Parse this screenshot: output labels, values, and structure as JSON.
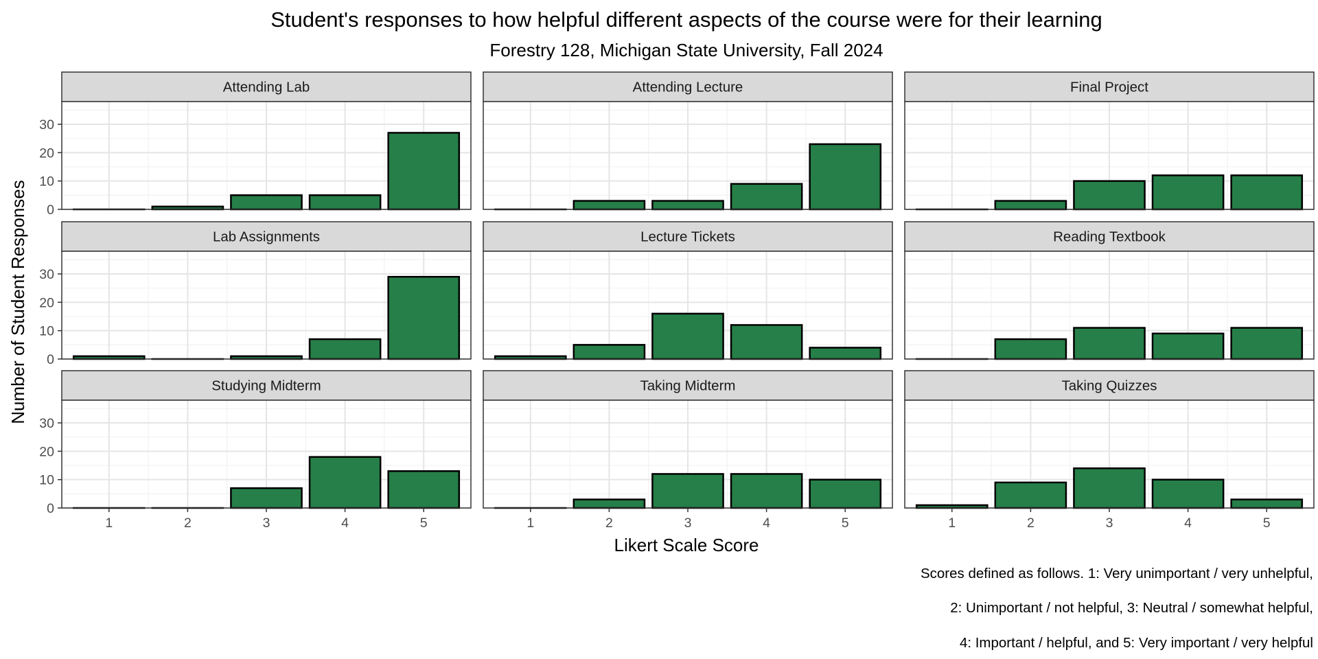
{
  "chart_data": {
    "type": "bar",
    "title": "Student's responses to how helpful different aspects of the course were for their learning",
    "subtitle": "Forestry 128, Michigan State University, Fall 2024",
    "xlabel": "Likert Scale Score",
    "ylabel": "Number of Student Responses",
    "categories": [
      "1",
      "2",
      "3",
      "4",
      "5"
    ],
    "yticks": [
      "0",
      "10",
      "20",
      "30"
    ],
    "ylim": [
      0,
      38
    ],
    "grid": true,
    "bar_color": "#267f48",
    "bar_outline": "#000000",
    "strip_fill": "#d9d9d9",
    "panels": [
      {
        "name": "Attending Lab",
        "values": [
          0,
          1,
          5,
          5,
          27
        ]
      },
      {
        "name": "Attending Lecture",
        "values": [
          0,
          3,
          3,
          9,
          23
        ]
      },
      {
        "name": "Final Project",
        "values": [
          0,
          3,
          10,
          12,
          12
        ]
      },
      {
        "name": "Lab Assignments",
        "values": [
          1,
          0,
          1,
          7,
          29
        ]
      },
      {
        "name": "Lecture Tickets",
        "values": [
          1,
          5,
          16,
          12,
          4
        ]
      },
      {
        "name": "Reading Textbook",
        "values": [
          0,
          7,
          11,
          9,
          11
        ]
      },
      {
        "name": "Studying Midterm",
        "values": [
          0,
          0,
          7,
          18,
          13
        ]
      },
      {
        "name": "Taking Midterm",
        "values": [
          0,
          3,
          12,
          12,
          10
        ]
      },
      {
        "name": "Taking Quizzes",
        "values": [
          1,
          9,
          14,
          10,
          3
        ]
      }
    ],
    "caption": [
      "Scores defined as follows. 1: Very unimportant / very unhelpful,",
      "2: Unimportant / not helpful, 3: Neutral / somewhat helpful,",
      "4: Important / helpful, and 5: Very important / very helpful"
    ]
  }
}
